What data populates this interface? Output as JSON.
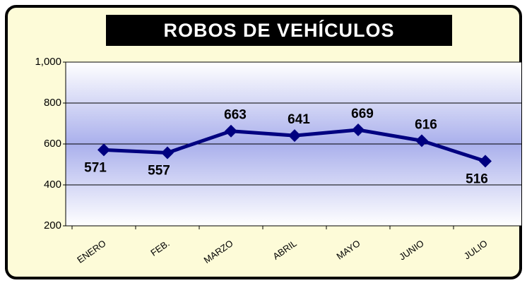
{
  "chart_data": {
    "type": "line",
    "title": "ROBOS DE VEHÍCULOS",
    "categories": [
      "ENERO",
      "FEB.",
      "MARZO",
      "ABRIL",
      "MAYO",
      "JUNIO",
      "JULIO"
    ],
    "values": [
      571,
      557,
      663,
      641,
      669,
      616,
      516
    ],
    "color": "#000080",
    "ylim": [
      200,
      1000
    ],
    "yticks": [
      200,
      400,
      600,
      800,
      {
        "value": 1000,
        "label": "1,000"
      }
    ],
    "grid": true
  }
}
